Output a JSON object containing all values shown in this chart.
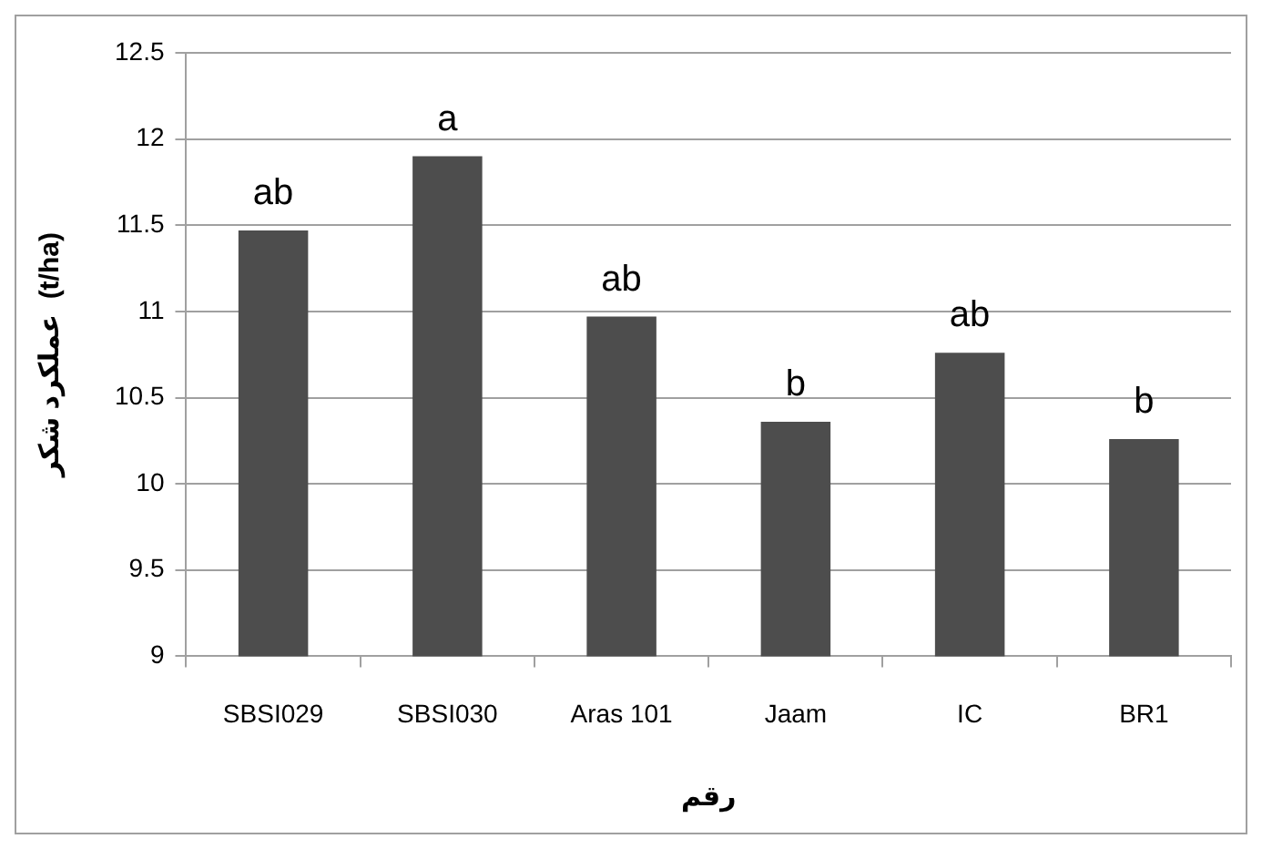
{
  "chart_data": {
    "type": "bar",
    "xlabel": "رقم",
    "ylabel": "عملکرد شکر  (t/ha)",
    "categories": [
      "SBSI029",
      "SBSI030",
      "Aras 101",
      "Jaam",
      "IC",
      "BR1"
    ],
    "values": [
      11.47,
      11.9,
      10.97,
      10.36,
      10.76,
      10.26
    ],
    "color": "#4d4d4d",
    "ylim": [
      9,
      12.5
    ],
    "yticks": [
      9,
      9.5,
      10,
      10.5,
      11,
      11.5,
      12,
      12.5
    ],
    "grid": "y",
    "annotations": [
      {
        "text": "ab",
        "x": "SBSI029",
        "y": 11.47
      },
      {
        "text": "a",
        "x": "SBSI030",
        "y": 11.9
      },
      {
        "text": "ab",
        "x": "Aras 101",
        "y": 10.97
      },
      {
        "text": "b",
        "x": "Jaam",
        "y": 10.36
      },
      {
        "text": "ab",
        "x": "IC",
        "y": 10.76
      },
      {
        "text": "b",
        "x": "BR1",
        "y": 10.26
      }
    ]
  }
}
